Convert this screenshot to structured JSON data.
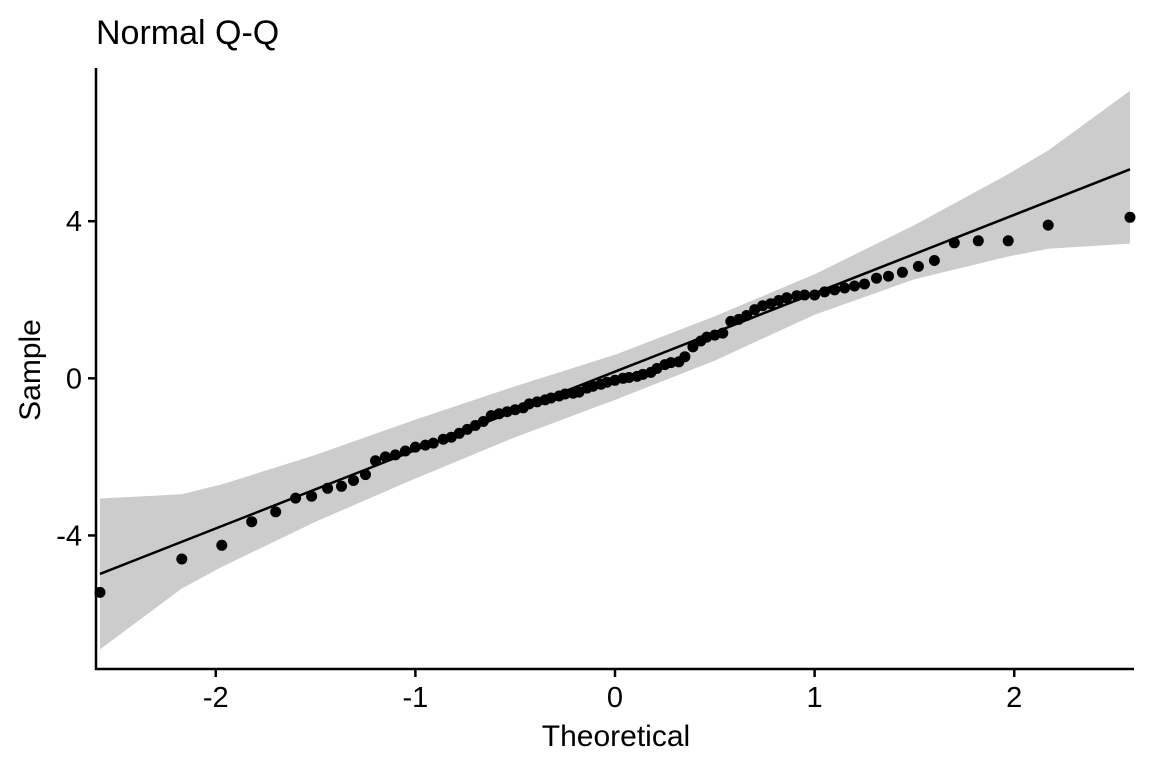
{
  "chart_data": {
    "type": "scatter",
    "title": "Normal Q-Q",
    "xlabel": "Theoretical",
    "ylabel": "Sample",
    "xlim": [
      -2.6,
      2.6
    ],
    "ylim": [
      -7.4,
      7.9
    ],
    "x_ticks": [
      -2,
      -1,
      0,
      1,
      2
    ],
    "x_tick_labels": [
      "-2",
      "-1",
      "0",
      "1",
      "2"
    ],
    "y_ticks": [
      -4,
      0,
      4
    ],
    "y_tick_labels": [
      "-4",
      "0",
      "4"
    ],
    "grid": false,
    "legend": "none",
    "colors": {
      "points": "#000000",
      "line": "#000000",
      "band": "#cccccc",
      "axis": "#000000"
    },
    "reference_line": {
      "x": [
        -2.58,
        2.58
      ],
      "y": [
        -4.98,
        5.32
      ]
    },
    "confidence_band": {
      "x": [
        -2.58,
        -2.17,
        -1.97,
        -1.5,
        -1.0,
        -0.5,
        0.0,
        0.5,
        1.0,
        1.5,
        1.97,
        2.17,
        2.58
      ],
      "upper": [
        -3.06,
        -2.95,
        -2.7,
        -1.95,
        -1.05,
        -0.2,
        0.6,
        1.58,
        2.65,
        3.9,
        5.2,
        5.8,
        7.32
      ],
      "lower": [
        -6.9,
        -5.35,
        -4.8,
        -3.65,
        -2.55,
        -1.5,
        -0.55,
        0.45,
        1.62,
        2.52,
        3.1,
        3.3,
        3.43
      ]
    },
    "points": {
      "x": [
        -2.58,
        -2.17,
        -1.97,
        -1.82,
        -1.7,
        -1.6,
        -1.52,
        -1.44,
        -1.37,
        -1.31,
        -1.25,
        -1.2,
        -1.15,
        -1.1,
        -1.05,
        -1.0,
        -0.95,
        -0.91,
        -0.86,
        -0.82,
        -0.78,
        -0.74,
        -0.7,
        -0.66,
        -0.62,
        -0.58,
        -0.54,
        -0.5,
        -0.46,
        -0.43,
        -0.39,
        -0.35,
        -0.32,
        -0.28,
        -0.25,
        -0.21,
        -0.18,
        -0.14,
        -0.11,
        -0.07,
        -0.04,
        0.0,
        0.04,
        0.07,
        0.11,
        0.14,
        0.18,
        0.21,
        0.25,
        0.28,
        0.32,
        0.35,
        0.39,
        0.43,
        0.46,
        0.5,
        0.54,
        0.58,
        0.62,
        0.66,
        0.7,
        0.74,
        0.78,
        0.82,
        0.86,
        0.91,
        0.95,
        1.0,
        1.05,
        1.1,
        1.15,
        1.2,
        1.25,
        1.31,
        1.37,
        1.44,
        1.52,
        1.6,
        1.7,
        1.82,
        1.97,
        2.17,
        2.58
      ],
      "y": [
        -5.45,
        -4.6,
        -4.25,
        -3.65,
        -3.4,
        -3.05,
        -3.0,
        -2.8,
        -2.75,
        -2.6,
        -2.45,
        -2.1,
        -2.0,
        -1.95,
        -1.85,
        -1.75,
        -1.7,
        -1.65,
        -1.55,
        -1.5,
        -1.4,
        -1.3,
        -1.2,
        -1.1,
        -0.95,
        -0.9,
        -0.85,
        -0.8,
        -0.75,
        -0.65,
        -0.6,
        -0.55,
        -0.5,
        -0.45,
        -0.4,
        -0.38,
        -0.35,
        -0.25,
        -0.2,
        -0.15,
        -0.1,
        -0.05,
        0.0,
        0.02,
        0.05,
        0.1,
        0.15,
        0.25,
        0.35,
        0.4,
        0.42,
        0.55,
        0.8,
        0.95,
        1.05,
        1.1,
        1.15,
        1.45,
        1.5,
        1.6,
        1.75,
        1.85,
        1.9,
        1.98,
        2.05,
        2.1,
        2.12,
        2.12,
        2.2,
        2.25,
        2.3,
        2.35,
        2.4,
        2.55,
        2.6,
        2.7,
        2.85,
        3.0,
        3.45,
        3.5,
        3.5,
        3.9,
        4.1
      ]
    }
  }
}
